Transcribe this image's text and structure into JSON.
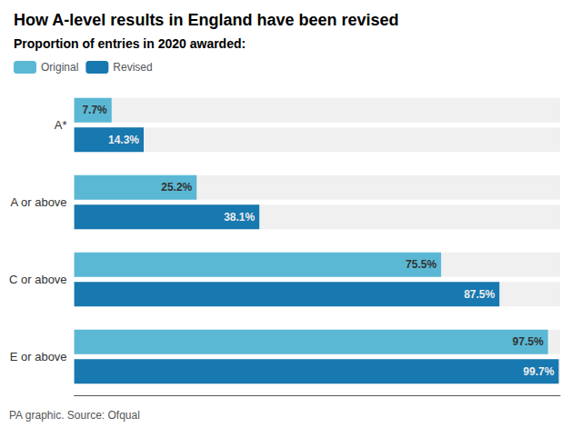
{
  "chart_data": {
    "type": "bar",
    "orientation": "horizontal",
    "title": "How A-level results in England have been revised",
    "subtitle": "Proportion of entries in 2020 awarded:",
    "annotations": [
      "PA graphic. Source: Ofqual"
    ],
    "categories": [
      "A*",
      "A or above",
      "C or above",
      "E or above"
    ],
    "series": [
      {
        "name": "Original",
        "color": "#5ab8d5",
        "values": [
          7.7,
          25.2,
          75.5,
          97.5
        ],
        "value_labels": [
          "7.7%",
          "25.2%",
          "75.5%",
          "97.5%"
        ]
      },
      {
        "name": "Revised",
        "color": "#1878b0",
        "values": [
          14.3,
          38.1,
          87.5,
          99.7
        ],
        "value_labels": [
          "14.3%",
          "38.1%",
          "87.5%",
          "99.7%"
        ]
      }
    ],
    "xlim": [
      0,
      100
    ],
    "tick_labels": "y",
    "grid": false,
    "legend": "top",
    "data_labels": true
  }
}
